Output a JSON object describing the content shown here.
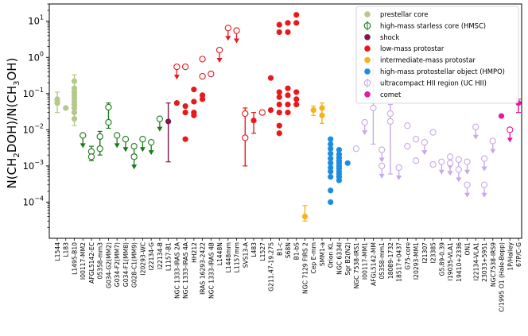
{
  "chart_data": {
    "type": "scatter",
    "title": "",
    "xlabel": "",
    "ylabel": "N(CH2DOH)/N(CH3OH)",
    "ylabel_parts": {
      "a": "N(CH",
      "b": "2",
      "c": "DOH)/N(CH",
      "d": "3",
      "e": "OH)"
    },
    "yscale": "log",
    "ylim": [
      1e-05,
      30
    ],
    "yticks": [
      {
        "value": 0.0001,
        "base": "10",
        "exp": "−4"
      },
      {
        "value": 0.001,
        "base": "10",
        "exp": "−3"
      },
      {
        "value": 0.01,
        "base": "10",
        "exp": "−2"
      },
      {
        "value": 0.1,
        "base": "10",
        "exp": "−1"
      },
      {
        "value": 1,
        "base": "10",
        "exp": "0"
      },
      {
        "value": 10,
        "base": "10",
        "exp": "1"
      }
    ],
    "legend_position": "top-right",
    "categories": [
      "L1544",
      "L183",
      "L1495-B10",
      "I00117-MM2",
      "AFGL5142-EC",
      "05358-mm3",
      "G034-G2(MM2)",
      "G034-F2(MM7)",
      "G034-F1(MM8)",
      "G028-C1(MM9)",
      "I20293-WC",
      "I22134-G",
      "I22134-B",
      "L1157-B1",
      "NGC 1333-IRAS 2A",
      "NGC 1333-IRAS 4A",
      "HH212",
      "IRAS 16293-2422",
      "NGC 1333-IRAS 4B",
      "L1448N",
      "L1448mm",
      "L1157mm",
      "SVS13-A",
      "L483",
      "L1527",
      "G211.47-19.27S",
      "B1-c",
      "S68N",
      "B1-bS",
      "NGC 7129 FIRS 2",
      "Cep E-mm",
      "SMM1-a",
      "Orion KL",
      "NGC 6334I",
      "Sgr B2(N2)",
      "NGC 7538-IRS1",
      "I00117-MM1",
      "AFGL5142-MM",
      "05358-mm1",
      "18089-1732",
      "18517+0437",
      "G75-core",
      "I20293-MM1",
      "I21307",
      "I23385",
      "G5.89-0.39",
      "I19035-VLA1",
      "19410+2336",
      "ON1",
      "I22134-VLA1",
      "23033+5951",
      "NGC7538-IRS9",
      "C/1995 O1 (Hale-Bopp)",
      "1P/Halley",
      "67P/C-G"
    ],
    "series": [
      {
        "name": "prestellar core",
        "color": "#b5c98a",
        "marker": "filled",
        "points": [
          {
            "cat": "L1544",
            "values": [
              0.07,
              0.065,
              0.055
            ],
            "err": [
              0.03,
              0.11
            ]
          },
          {
            "cat": "L183",
            "values": [
              0.04
            ]
          },
          {
            "cat": "L1495-B10",
            "values": [
              0.22,
              0.14,
              0.11,
              0.09,
              0.075,
              0.06,
              0.05,
              0.04,
              0.03,
              0.02
            ],
            "err": [
              0.013,
              0.33
            ],
            "limits": [
              0.1,
              0.05,
              0.03
            ]
          }
        ]
      },
      {
        "name": "high-mass starless core (HMSC)",
        "color": "#1a7a1a",
        "marker": "open",
        "points": [
          {
            "cat": "I00117-MM2",
            "values": [
              0.007
            ],
            "upper_limit": true
          },
          {
            "cat": "AFGL5142-EC",
            "values": [
              0.0025,
              0.0018
            ],
            "err": [
              0.0014,
              0.0035
            ]
          },
          {
            "cat": "05358-mm3",
            "values": [
              0.0065,
              0.003
            ],
            "err": [
              0.002,
              0.009
            ]
          },
          {
            "cat": "G034-G2(MM2)",
            "values": [
              0.042,
              0.016
            ],
            "err": [
              0.011,
              0.055
            ]
          },
          {
            "cat": "G034-F2(MM7)",
            "values": [
              0.007
            ],
            "upper_limit": true
          },
          {
            "cat": "G034-F1(MM8)",
            "values": [
              0.0055
            ],
            "upper_limit": true
          },
          {
            "cat": "G028-C1(MM9)",
            "values": [
              0.0035,
              0.0018
            ],
            "upper_limit": true
          },
          {
            "cat": "I20293-WC",
            "values": [
              0.0055
            ],
            "upper_limit": true
          },
          {
            "cat": "I22134-G",
            "values": [
              0.0045
            ],
            "upper_limit": true
          },
          {
            "cat": "I22134-B",
            "values": [
              0.02
            ],
            "upper_limit": true
          }
        ]
      },
      {
        "name": "shock",
        "color": "#7b1a4b",
        "marker": "filled",
        "points": [
          {
            "cat": "L1157-B1",
            "values": [
              0.017
            ],
            "err": [
              0.0013,
              0.055
            ]
          }
        ]
      },
      {
        "name": "low-mass protostar",
        "color": "#e8191b",
        "marker": "filled",
        "points": [
          {
            "cat": "NGC 1333-IRAS 2A",
            "values": [
              0.55,
              0.055
            ],
            "open": [
              0.55
            ],
            "upper_limit_open": [
              0.55
            ]
          },
          {
            "cat": "NGC 1333-IRAS 4A",
            "values": [
              0.55,
              0.045,
              0.03,
              0.0055
            ],
            "open": [
              0.55
            ]
          },
          {
            "cat": "HH212",
            "values": [
              0.13,
              0.06,
              0.03,
              0.025
            ]
          },
          {
            "cat": "IRAS 16293-2422",
            "values": [
              0.9,
              0.3,
              0.09,
              0.07
            ],
            "open": [
              0.9,
              0.3
            ]
          },
          {
            "cat": "NGC 1333-IRAS 4B",
            "values": [
              0.35
            ],
            "open": [
              0.35
            ]
          },
          {
            "cat": "L1448N",
            "values": [
              1.6
            ],
            "open": [
              1.6
            ],
            "upper_limit_open": [
              1.6
            ]
          },
          {
            "cat": "L1448mm",
            "values": [
              6.5
            ],
            "open": [
              6.5
            ],
            "upper_limit_open": [
              6.5
            ]
          },
          {
            "cat": "L1157mm",
            "values": [
              5.5
            ],
            "open": [
              5.5
            ],
            "upper_limit_open": [
              5.5
            ]
          },
          {
            "cat": "SVS13-A",
            "values": [
              0.028,
              0.006
            ],
            "open": [
              0.028,
              0.006
            ],
            "err": [
              0.001,
              0.04
            ]
          },
          {
            "cat": "L483",
            "values": [
              0.018
            ],
            "err": [
              0.008,
              0.03
            ]
          },
          {
            "cat": "L1527",
            "values": [
              0.03
            ],
            "open": [
              0.03
            ]
          },
          {
            "cat": "G211.47-19.27S",
            "values": [
              0.27,
              0.035
            ]
          },
          {
            "cat": "B1-c",
            "values": [
              8,
              5,
              0.11,
              0.08,
              0.05,
              0.03,
              0.013,
              0.008
            ]
          },
          {
            "cat": "S68N",
            "values": [
              9,
              5,
              0.14,
              0.09,
              0.05,
              0.03
            ]
          },
          {
            "cat": "B1-bS",
            "values": [
              15,
              9,
              0.11,
              0.07,
              0.05
            ]
          }
        ]
      },
      {
        "name": "intermediate-mass protostar",
        "color": "#f4b31a",
        "marker": "filled",
        "points": [
          {
            "cat": "NGC 7129 FIRS 2",
            "values": [
              4e-05
            ],
            "err": [
              3e-05,
              8e-05
            ]
          },
          {
            "cat": "Cep E-mm",
            "values": [
              0.035
            ],
            "err": [
              0.025,
              0.045
            ]
          },
          {
            "cat": "SMM1-a",
            "values": [
              0.04,
              0.025
            ],
            "err": [
              0.015,
              0.055
            ]
          }
        ]
      },
      {
        "name": "high-mass protostellar object (HMPO)",
        "color": "#1c8de0",
        "marker": "filled",
        "points": [
          {
            "cat": "Orion KL",
            "values": [
              0.0055,
              0.004,
              0.003,
              0.0022,
              0.0016,
              0.0012,
              0.0009,
              0.0007,
              0.0005,
              0.00021,
              0.0001
            ]
          },
          {
            "cat": "NGC 6334I",
            "values": [
              0.0028,
              0.0021,
              0.0017,
              0.0014,
              0.0012,
              0.001,
              0.00085,
              0.0007,
              0.0006,
              0.0005,
              0.0004
            ]
          },
          {
            "cat": "Sgr B2(N2)",
            "values": [
              0.0012
            ]
          }
        ]
      },
      {
        "name": "ultracompact HII region (UC HII)",
        "color": "#c8a8e8",
        "marker": "open",
        "points": [
          {
            "cat": "NGC 7538-IRS1",
            "values": [
              0.003
            ]
          },
          {
            "cat": "I00117-MM1",
            "values": [
              0.016
            ],
            "upper_limit": true
          },
          {
            "cat": "AFGL5142-MM",
            "values": [
              0.25,
              0.04
            ],
            "err": [
              0.004,
              0.9
            ]
          },
          {
            "cat": "05358-mm1",
            "values": [
              0.0028,
              0.001
            ],
            "upper_limit": true
          },
          {
            "cat": "18089-1732",
            "values": [
              0.028,
              0.017
            ],
            "err": [
              0.0006,
              0.05
            ]
          },
          {
            "cat": "18517+0437",
            "values": [
              0.0009
            ],
            "upper_limit": true
          },
          {
            "cat": "G75-core",
            "values": [
              0.0035,
              0.013
            ]
          },
          {
            "cat": "I20293-MM1",
            "values": [
              0.0055,
              0.0014
            ]
          },
          {
            "cat": "I21307",
            "values": [
              0.0045
            ],
            "upper_limit": true
          },
          {
            "cat": "I23385",
            "values": [
              0.0085,
              0.0011
            ]
          },
          {
            "cat": "G5.89-0.39",
            "values": [
              0.0013
            ],
            "upper_limit": true
          },
          {
            "cat": "I19035-VLA1",
            "values": [
              0.0018,
              0.0012
            ],
            "upper_limit": true
          },
          {
            "cat": "19410+2336",
            "values": [
              0.0015,
              0.0008
            ],
            "upper_limit": true
          },
          {
            "cat": "ON1",
            "values": [
              0.0013,
              0.0003
            ],
            "upper_limit": true
          },
          {
            "cat": "I22134-VLA1",
            "values": [
              0.012
            ],
            "upper_limit": true
          },
          {
            "cat": "23033+5951",
            "values": [
              0.0016,
              0.0003
            ],
            "upper_limit": true
          },
          {
            "cat": "NGC7538-IRS9",
            "values": [
              0.0049
            ],
            "upper_limit": true
          }
        ]
      },
      {
        "name": "comet",
        "color": "#e5199f",
        "marker": "filled",
        "points": [
          {
            "cat": "C/1995 O1 (Hale-Bopp)",
            "values": [
              0.024
            ]
          },
          {
            "cat": "1P/Halley",
            "values": [
              0.01
            ],
            "open": [
              0.01
            ],
            "upper_limit_open": [
              0.01
            ]
          },
          {
            "cat": "67P/C-G",
            "values": [
              0.055
            ],
            "err": [
              0.03,
              0.07
            ]
          }
        ]
      }
    ]
  }
}
